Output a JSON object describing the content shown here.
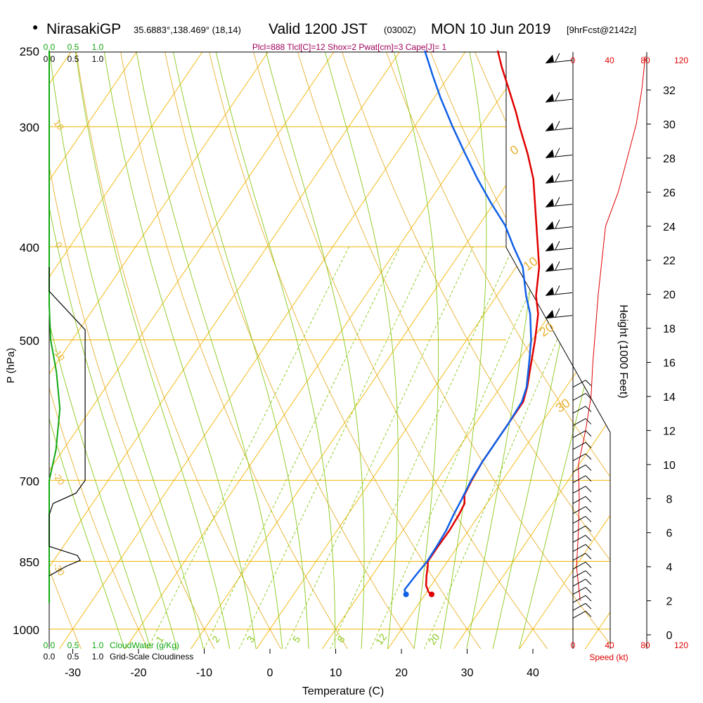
{
  "header": {
    "station": "NirasakiGP",
    "coords": "35.6883°,138.469° (18,14)",
    "valid_label": "Valid 1200 JST",
    "utc": "(0300Z)",
    "date": "MON 10 Jun 2019",
    "forecast": "[9hrFcst@2142z]",
    "indices": "Plcl=888 Tlcl[C]=12 Shox=2 Pwat[cm]=3 Cape[J]= 1"
  },
  "colors": {
    "isobar": "#f0b400",
    "dry_adiabat": "#e8b030",
    "moist_adiabat": "#88c818",
    "mixing_ratio": "#88c818",
    "temperature": "#e00000",
    "dewpoint": "#1060e8",
    "cloudwater": "#10a810",
    "wind_speed": "#e00000"
  },
  "chart_data": {
    "type": "skew-t",
    "title": "Valid 1200 JST (0300Z) MON 10 Jun 2019",
    "xlabel": "Temperature (C)",
    "ylabel": "P (hPa)",
    "x_ticks": [
      -30,
      -20,
      -10,
      0,
      10,
      20,
      30,
      40
    ],
    "pressure_levels": [
      1000,
      850,
      700,
      500,
      400,
      300,
      250
    ],
    "right_axis_label": "Height (1000 Feet)",
    "height_ticks": [
      0,
      2,
      4,
      6,
      8,
      10,
      12,
      14,
      16,
      18,
      20,
      22,
      24,
      26,
      28,
      30,
      32
    ],
    "wind_speed_ticks": [
      "0",
      "40",
      "80",
      "120"
    ],
    "wind_speed_label": "Speed (kt)",
    "cloudwater_ticks": [
      "0.0",
      "0.5",
      "1.0"
    ],
    "cloudwater_label": "CloudWater (g/Kg)",
    "cloudiness_ticks": [
      "0.0",
      "0.5",
      "1.0"
    ],
    "cloudiness_label": "Grid-Scale Cloudiness",
    "dry_adiabat_labels": [
      {
        "label": "10",
        "p": 300
      },
      {
        "label": "0",
        "p": 400
      },
      {
        "label": "-10",
        "p": 520
      },
      {
        "label": "-20",
        "p": 700
      },
      {
        "label": "-30",
        "p": 870
      },
      {
        "label": "0",
        "p": 320
      },
      {
        "label": "10",
        "p": 420
      },
      {
        "label": "20",
        "p": 492
      },
      {
        "label": "30",
        "p": 590
      }
    ],
    "mixing_ratio_labels": [
      "1",
      "2",
      "3",
      "5",
      "8",
      "12",
      "20"
    ],
    "temperature": [
      {
        "p": 920,
        "t": 21
      },
      {
        "p": 915,
        "t": 20.3
      },
      {
        "p": 900,
        "t": 19.2
      },
      {
        "p": 880,
        "t": 18.3
      },
      {
        "p": 860,
        "t": 17.5
      },
      {
        "p": 850,
        "t": 17.0
      },
      {
        "p": 820,
        "t": 17.0
      },
      {
        "p": 790,
        "t": 17.1
      },
      {
        "p": 760,
        "t": 16.9
      },
      {
        "p": 740,
        "t": 16.6
      },
      {
        "p": 725,
        "t": 15.7
      },
      {
        "p": 700,
        "t": 15.3
      },
      {
        "p": 670,
        "t": 15.0
      },
      {
        "p": 640,
        "t": 15.0
      },
      {
        "p": 610,
        "t": 15.0
      },
      {
        "p": 580,
        "t": 15.0
      },
      {
        "p": 560,
        "t": 14.1
      },
      {
        "p": 530,
        "t": 12.3
      },
      {
        "p": 500,
        "t": 10.4
      },
      {
        "p": 470,
        "t": 8.2
      },
      {
        "p": 450,
        "t": 6.0
      },
      {
        "p": 420,
        "t": 3.5
      },
      {
        "p": 400,
        "t": 1.2
      },
      {
        "p": 370,
        "t": -2.5
      },
      {
        "p": 340,
        "t": -6.5
      },
      {
        "p": 320,
        "t": -10.0
      },
      {
        "p": 300,
        "t": -14.0
      },
      {
        "p": 290,
        "t": -16.0
      },
      {
        "p": 270,
        "t": -20.5
      },
      {
        "p": 260,
        "t": -22.9
      },
      {
        "p": 250,
        "t": -25.2
      }
    ],
    "dewpoint": [
      {
        "p": 920,
        "t": 17.1
      },
      {
        "p": 910,
        "t": 16.4
      },
      {
        "p": 880,
        "t": 16.6
      },
      {
        "p": 850,
        "t": 16.9
      },
      {
        "p": 820,
        "t": 16.8
      },
      {
        "p": 790,
        "t": 16.6
      },
      {
        "p": 760,
        "t": 16.1
      },
      {
        "p": 730,
        "t": 15.7
      },
      {
        "p": 700,
        "t": 15.2
      },
      {
        "p": 670,
        "t": 15.0
      },
      {
        "p": 640,
        "t": 15.0
      },
      {
        "p": 610,
        "t": 15.0
      },
      {
        "p": 580,
        "t": 14.8
      },
      {
        "p": 560,
        "t": 14.0
      },
      {
        "p": 530,
        "t": 12.0
      },
      {
        "p": 500,
        "t": 9.8
      },
      {
        "p": 470,
        "t": 7.0
      },
      {
        "p": 450,
        "t": 4.5
      },
      {
        "p": 420,
        "t": 1.0
      },
      {
        "p": 400,
        "t": -2.5
      },
      {
        "p": 380,
        "t": -6.0
      },
      {
        "p": 360,
        "t": -10.5
      },
      {
        "p": 340,
        "t": -15.0
      },
      {
        "p": 320,
        "t": -19.5
      },
      {
        "p": 300,
        "t": -24.2
      },
      {
        "p": 280,
        "t": -29.0
      },
      {
        "p": 265,
        "t": -32.6
      },
      {
        "p": 250,
        "t": -36.3
      }
    ],
    "wind_speed_profile": [
      {
        "h": 2,
        "kt": 8
      },
      {
        "h": 4,
        "kt": 4
      },
      {
        "h": 6,
        "kt": 6
      },
      {
        "h": 8,
        "kt": 7
      },
      {
        "h": 10,
        "kt": 6
      },
      {
        "h": 12,
        "kt": 14
      },
      {
        "h": 14,
        "kt": 20
      },
      {
        "h": 16,
        "kt": 22
      },
      {
        "h": 18,
        "kt": 25
      },
      {
        "h": 20,
        "kt": 28
      },
      {
        "h": 22,
        "kt": 32
      },
      {
        "h": 24,
        "kt": 36
      },
      {
        "h": 26,
        "kt": 50
      },
      {
        "h": 28,
        "kt": 60
      },
      {
        "h": 30,
        "kt": 70
      },
      {
        "h": 32,
        "kt": 76
      },
      {
        "h": 34,
        "kt": 80
      }
    ],
    "wind_barbs_upper": [
      {
        "p": 255
      },
      {
        "p": 280
      },
      {
        "p": 300
      },
      {
        "p": 320
      },
      {
        "p": 340
      },
      {
        "p": 360
      },
      {
        "p": 380
      },
      {
        "p": 400
      },
      {
        "p": 420
      },
      {
        "p": 445
      },
      {
        "p": 470
      }
    ],
    "cloudwater_profile": [
      {
        "p": 250,
        "v": 0
      },
      {
        "p": 460,
        "v": 0
      },
      {
        "p": 500,
        "v": 0.03
      },
      {
        "p": 540,
        "v": 0.15
      },
      {
        "p": 590,
        "v": 0.22
      },
      {
        "p": 650,
        "v": 0.14
      },
      {
        "p": 700,
        "v": 0
      },
      {
        "p": 1000,
        "v": 0
      }
    ],
    "cloudiness_profile": [
      {
        "p": 445,
        "v": 0
      },
      {
        "p": 488,
        "v": 0.74
      },
      {
        "p": 700,
        "v": 0.74
      },
      {
        "p": 722,
        "v": 0.55
      },
      {
        "p": 740,
        "v": 0.08
      },
      {
        "p": 760,
        "v": 0
      },
      {
        "p": 820,
        "v": 0
      },
      {
        "p": 838,
        "v": 0.58
      },
      {
        "p": 848,
        "v": 0.64
      },
      {
        "p": 860,
        "v": 0.35
      },
      {
        "p": 880,
        "v": 0
      }
    ]
  }
}
